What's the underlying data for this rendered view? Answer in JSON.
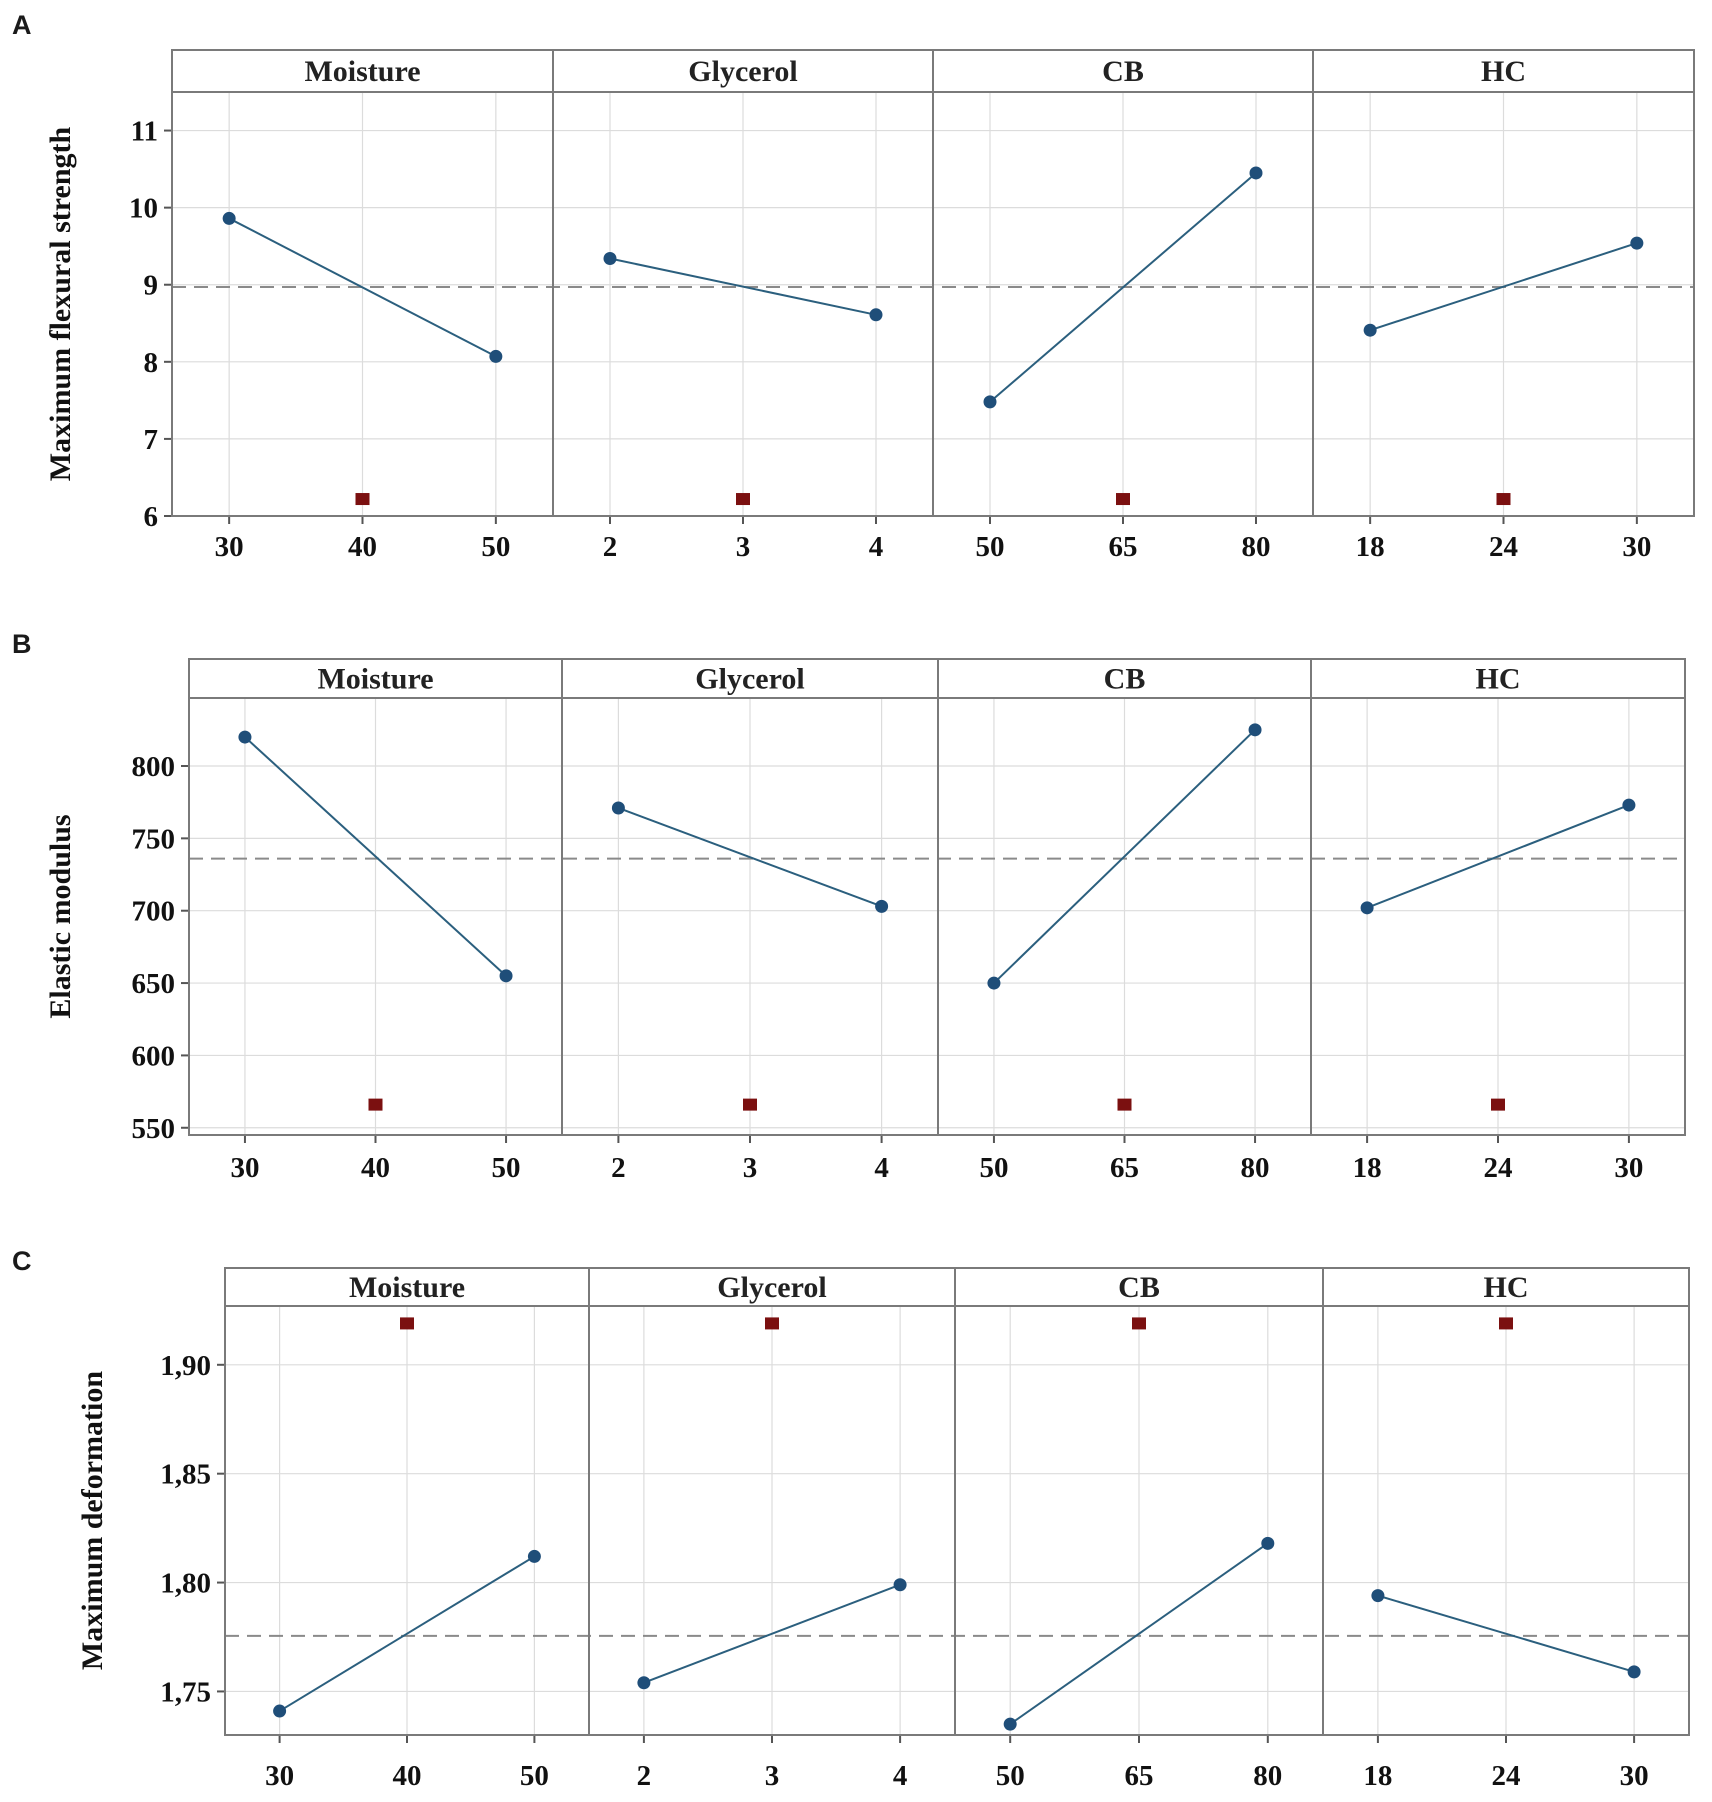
{
  "chart_data": [
    {
      "panel": "A",
      "type": "line",
      "ylabel": "Maximum flexural strength",
      "ylim": [
        6,
        11.5
      ],
      "yticks": [
        6,
        7,
        8,
        9,
        10,
        11
      ],
      "ytick_labels": [
        "6",
        "7",
        "8",
        "9",
        "10",
        "11"
      ],
      "mean": 8.97,
      "center_point": 6.22,
      "factors": [
        {
          "name": "Moisture",
          "levels": [
            30,
            40,
            50
          ],
          "level_labels": [
            "30",
            "40",
            "50"
          ],
          "values": [
            9.86,
            8.07
          ]
        },
        {
          "name": "Glycerol",
          "levels": [
            2,
            3,
            4
          ],
          "level_labels": [
            "2",
            "3",
            "4"
          ],
          "values": [
            9.34,
            8.61
          ]
        },
        {
          "name": "CB",
          "levels": [
            50,
            65,
            80
          ],
          "level_labels": [
            "50",
            "65",
            "80"
          ],
          "values": [
            7.48,
            10.45
          ]
        },
        {
          "name": "HC",
          "levels": [
            18,
            24,
            30
          ],
          "level_labels": [
            "18",
            "24",
            "30"
          ],
          "values": [
            8.41,
            9.54
          ]
        }
      ]
    },
    {
      "panel": "B",
      "type": "line",
      "ylabel": "Elastic modulus",
      "ylim": [
        545,
        847
      ],
      "yticks": [
        550,
        600,
        650,
        700,
        750,
        800
      ],
      "ytick_labels": [
        "550",
        "600",
        "650",
        "700",
        "750",
        "800"
      ],
      "mean": 736,
      "center_point": 566,
      "factors": [
        {
          "name": "Moisture",
          "levels": [
            30,
            40,
            50
          ],
          "level_labels": [
            "30",
            "40",
            "50"
          ],
          "values": [
            820,
            655
          ]
        },
        {
          "name": "Glycerol",
          "levels": [
            2,
            3,
            4
          ],
          "level_labels": [
            "2",
            "3",
            "4"
          ],
          "values": [
            771,
            703
          ]
        },
        {
          "name": "CB",
          "levels": [
            50,
            65,
            80
          ],
          "level_labels": [
            "50",
            "65",
            "80"
          ],
          "values": [
            650,
            825
          ]
        },
        {
          "name": "HC",
          "levels": [
            18,
            24,
            30
          ],
          "level_labels": [
            "18",
            "24",
            "30"
          ],
          "values": [
            702,
            773
          ]
        }
      ]
    },
    {
      "panel": "C",
      "type": "line",
      "ylabel": "Maximum deformation",
      "ylim": [
        1.73,
        1.927
      ],
      "yticks": [
        1.75,
        1.8,
        1.85,
        1.9
      ],
      "ytick_labels": [
        "1,75",
        "1,80",
        "1,85",
        "1,90"
      ],
      "mean": 1.7755,
      "center_point": 1.919,
      "factors": [
        {
          "name": "Moisture",
          "levels": [
            30,
            40,
            50
          ],
          "level_labels": [
            "30",
            "40",
            "50"
          ],
          "values": [
            1.741,
            1.812
          ]
        },
        {
          "name": "Glycerol",
          "levels": [
            2,
            3,
            4
          ],
          "level_labels": [
            "2",
            "3",
            "4"
          ],
          "values": [
            1.754,
            1.799
          ]
        },
        {
          "name": "CB",
          "levels": [
            50,
            65,
            80
          ],
          "level_labels": [
            "50",
            "65",
            "80"
          ],
          "values": [
            1.735,
            1.818
          ]
        },
        {
          "name": "HC",
          "levels": [
            18,
            24,
            30
          ],
          "level_labels": [
            "18",
            "24",
            "30"
          ],
          "values": [
            1.794,
            1.759
          ]
        }
      ]
    }
  ]
}
